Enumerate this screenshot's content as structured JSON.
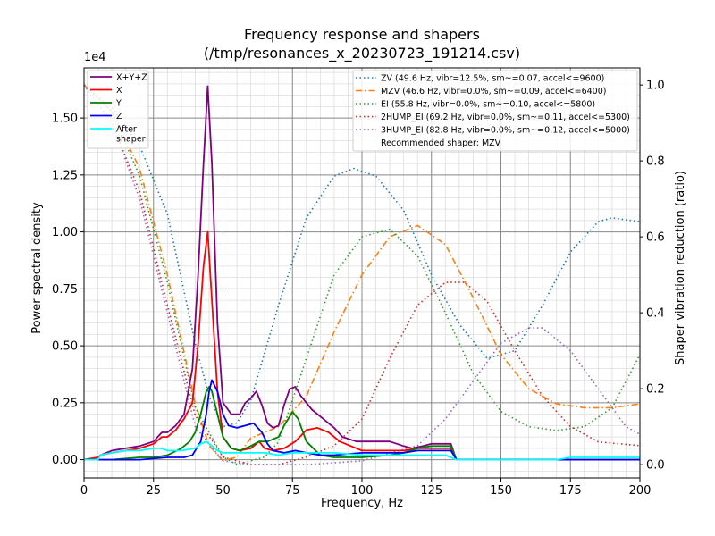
{
  "chart_data": {
    "type": "line",
    "title_line1": "Frequency response and shapers",
    "title_line2": "(/tmp/resonances_x_20230723_191214.csv)",
    "xlabel": "Frequency, Hz",
    "ylabel": "Power spectral density",
    "y2label": "Shaper vibration reduction (ratio)",
    "y_offset_text": "1e4",
    "xlim": [
      0,
      200
    ],
    "ylim": [
      -0.08,
      1.72
    ],
    "y2lim": [
      -0.035,
      1.045
    ],
    "x_ticks": [
      0,
      25,
      50,
      75,
      100,
      125,
      150,
      175,
      200
    ],
    "y_ticks": [
      0.0,
      0.25,
      0.5,
      0.75,
      1.0,
      1.25,
      1.5
    ],
    "y_tick_labels": [
      "0.00",
      "0.25",
      "0.50",
      "0.75",
      "1.00",
      "1.25",
      "1.50"
    ],
    "y2_ticks": [
      0.0,
      0.2,
      0.4,
      0.6,
      0.8,
      1.0
    ],
    "y2_tick_labels": [
      "0.0",
      "0.2",
      "0.4",
      "0.6",
      "0.8",
      "1.0"
    ],
    "grid": true,
    "legend_left_placement": "top-left",
    "legend_right_placement": "top-right",
    "psd_series": [
      {
        "name": "X+Y+Z",
        "color": "#800080",
        "style": "solid",
        "points": [
          [
            0,
            0
          ],
          [
            5,
            0.01
          ],
          [
            6,
            0.02
          ],
          [
            10,
            0.04
          ],
          [
            20,
            0.06
          ],
          [
            25,
            0.08
          ],
          [
            28,
            0.12
          ],
          [
            30,
            0.12
          ],
          [
            33,
            0.15
          ],
          [
            36,
            0.2
          ],
          [
            39,
            0.4
          ],
          [
            41,
            0.8
          ],
          [
            43,
            1.3
          ],
          [
            44.5,
            1.64
          ],
          [
            46,
            1.3
          ],
          [
            48,
            0.6
          ],
          [
            50,
            0.25
          ],
          [
            53,
            0.2
          ],
          [
            56,
            0.2
          ],
          [
            58,
            0.25
          ],
          [
            60,
            0.27
          ],
          [
            62,
            0.3
          ],
          [
            64,
            0.24
          ],
          [
            66,
            0.16
          ],
          [
            68,
            0.14
          ],
          [
            70,
            0.15
          ],
          [
            72,
            0.24
          ],
          [
            74,
            0.31
          ],
          [
            76,
            0.32
          ],
          [
            78,
            0.28
          ],
          [
            82,
            0.22
          ],
          [
            86,
            0.18
          ],
          [
            90,
            0.14
          ],
          [
            93,
            0.1
          ],
          [
            98,
            0.08
          ],
          [
            105,
            0.08
          ],
          [
            110,
            0.08
          ],
          [
            115,
            0.06
          ],
          [
            118,
            0.05
          ],
          [
            122,
            0.06
          ],
          [
            125,
            0.07
          ],
          [
            130,
            0.07
          ],
          [
            132,
            0.07
          ],
          [
            134,
            0.0
          ],
          [
            200,
            0.0
          ]
        ]
      },
      {
        "name": "X",
        "color": "#ff0000",
        "style": "solid",
        "points": [
          [
            0,
            0
          ],
          [
            5,
            0.01
          ],
          [
            6,
            0.02
          ],
          [
            10,
            0.03
          ],
          [
            20,
            0.05
          ],
          [
            25,
            0.07
          ],
          [
            28,
            0.1
          ],
          [
            30,
            0.1
          ],
          [
            33,
            0.13
          ],
          [
            36,
            0.18
          ],
          [
            39,
            0.25
          ],
          [
            41,
            0.5
          ],
          [
            43,
            0.85
          ],
          [
            44.5,
            1.0
          ],
          [
            46,
            0.7
          ],
          [
            48,
            0.3
          ],
          [
            50,
            0.1
          ],
          [
            53,
            0.05
          ],
          [
            56,
            0.04
          ],
          [
            60,
            0.05
          ],
          [
            63,
            0.08
          ],
          [
            65,
            0.05
          ],
          [
            68,
            0.04
          ],
          [
            72,
            0.05
          ],
          [
            76,
            0.08
          ],
          [
            80,
            0.13
          ],
          [
            84,
            0.14
          ],
          [
            88,
            0.12
          ],
          [
            92,
            0.08
          ],
          [
            96,
            0.06
          ],
          [
            100,
            0.04
          ],
          [
            110,
            0.04
          ],
          [
            115,
            0.04
          ],
          [
            120,
            0.05
          ],
          [
            125,
            0.05
          ],
          [
            130,
            0.05
          ],
          [
            132,
            0.05
          ],
          [
            134,
            0.0
          ],
          [
            200,
            0.0
          ]
        ]
      },
      {
        "name": "Y",
        "color": "#008000",
        "style": "solid",
        "points": [
          [
            0,
            0
          ],
          [
            5,
            0.0
          ],
          [
            10,
            0.0
          ],
          [
            20,
            0.01
          ],
          [
            25,
            0.01
          ],
          [
            30,
            0.02
          ],
          [
            35,
            0.05
          ],
          [
            38,
            0.08
          ],
          [
            40,
            0.12
          ],
          [
            42,
            0.2
          ],
          [
            44,
            0.3
          ],
          [
            45,
            0.32
          ],
          [
            46,
            0.3
          ],
          [
            48,
            0.2
          ],
          [
            50,
            0.1
          ],
          [
            53,
            0.05
          ],
          [
            56,
            0.04
          ],
          [
            60,
            0.06
          ],
          [
            63,
            0.08
          ],
          [
            66,
            0.08
          ],
          [
            70,
            0.1
          ],
          [
            72,
            0.15
          ],
          [
            75,
            0.21
          ],
          [
            77,
            0.18
          ],
          [
            80,
            0.08
          ],
          [
            85,
            0.02
          ],
          [
            90,
            0.01
          ],
          [
            100,
            0.01
          ],
          [
            110,
            0.02
          ],
          [
            115,
            0.03
          ],
          [
            120,
            0.05
          ],
          [
            125,
            0.06
          ],
          [
            130,
            0.06
          ],
          [
            132,
            0.06
          ],
          [
            134,
            0.0
          ],
          [
            200,
            0.0
          ]
        ]
      },
      {
        "name": "Z",
        "color": "#0000ff",
        "style": "solid",
        "points": [
          [
            0,
            0
          ],
          [
            10,
            0.0
          ],
          [
            20,
            0.0
          ],
          [
            30,
            0.01
          ],
          [
            36,
            0.01
          ],
          [
            39,
            0.02
          ],
          [
            42,
            0.08
          ],
          [
            44,
            0.2
          ],
          [
            45,
            0.3
          ],
          [
            46,
            0.35
          ],
          [
            48,
            0.3
          ],
          [
            50,
            0.2
          ],
          [
            52,
            0.15
          ],
          [
            55,
            0.14
          ],
          [
            58,
            0.15
          ],
          [
            61,
            0.16
          ],
          [
            64,
            0.12
          ],
          [
            66,
            0.07
          ],
          [
            68,
            0.04
          ],
          [
            72,
            0.03
          ],
          [
            76,
            0.04
          ],
          [
            80,
            0.03
          ],
          [
            85,
            0.02
          ],
          [
            90,
            0.02
          ],
          [
            100,
            0.03
          ],
          [
            110,
            0.03
          ],
          [
            115,
            0.03
          ],
          [
            120,
            0.04
          ],
          [
            125,
            0.04
          ],
          [
            130,
            0.04
          ],
          [
            132,
            0.04
          ],
          [
            134,
            0.0
          ],
          [
            200,
            0.0
          ]
        ]
      },
      {
        "name": "After\nshaper",
        "color": "#00ffff",
        "style": "solid",
        "points": [
          [
            0,
            0
          ],
          [
            5,
            0.0
          ],
          [
            6,
            0.02
          ],
          [
            10,
            0.03
          ],
          [
            15,
            0.04
          ],
          [
            20,
            0.04
          ],
          [
            25,
            0.05
          ],
          [
            28,
            0.05
          ],
          [
            30,
            0.04
          ],
          [
            35,
            0.04
          ],
          [
            40,
            0.05
          ],
          [
            42,
            0.07
          ],
          [
            44,
            0.08
          ],
          [
            46,
            0.06
          ],
          [
            48,
            0.04
          ],
          [
            50,
            0.03
          ],
          [
            55,
            0.03
          ],
          [
            60,
            0.03
          ],
          [
            65,
            0.03
          ],
          [
            70,
            0.02
          ],
          [
            75,
            0.03
          ],
          [
            80,
            0.03
          ],
          [
            90,
            0.03
          ],
          [
            100,
            0.02
          ],
          [
            110,
            0.02
          ],
          [
            120,
            0.02
          ],
          [
            130,
            0.02
          ],
          [
            134,
            0.0
          ],
          [
            170,
            0.0
          ],
          [
            175,
            0.01
          ],
          [
            200,
            0.01
          ]
        ]
      }
    ],
    "shaper_series": [
      {
        "name": "ZV (49.6 Hz, vibr=12.5%, sm~=0.07, accel<=9600)",
        "color": "#1f77b4",
        "style": "dotted",
        "points": [
          [
            0,
            1.0
          ],
          [
            10,
            0.94
          ],
          [
            20,
            0.84
          ],
          [
            30,
            0.66
          ],
          [
            40,
            0.32
          ],
          [
            45,
            0.18
          ],
          [
            50,
            0.1
          ],
          [
            55,
            0.11
          ],
          [
            60,
            0.17
          ],
          [
            70,
            0.42
          ],
          [
            80,
            0.65
          ],
          [
            90,
            0.76
          ],
          [
            97,
            0.78
          ],
          [
            105,
            0.76
          ],
          [
            115,
            0.67
          ],
          [
            125,
            0.5
          ],
          [
            135,
            0.37
          ],
          [
            145,
            0.28
          ],
          [
            155,
            0.3
          ],
          [
            165,
            0.42
          ],
          [
            175,
            0.56
          ],
          [
            185,
            0.64
          ],
          [
            190,
            0.65
          ],
          [
            200,
            0.64
          ]
        ]
      },
      {
        "name": "MZV (46.6 Hz, vibr=0.0%, sm~=0.09, accel<=6400)",
        "color": "#ff7f0e",
        "style": "dashdot",
        "points": [
          [
            0,
            1.0
          ],
          [
            10,
            0.93
          ],
          [
            20,
            0.78
          ],
          [
            30,
            0.5
          ],
          [
            40,
            0.16
          ],
          [
            45,
            0.05
          ],
          [
            50,
            0.01
          ],
          [
            55,
            0.02
          ],
          [
            60,
            0.07
          ],
          [
            70,
            0.1
          ],
          [
            80,
            0.18
          ],
          [
            90,
            0.35
          ],
          [
            100,
            0.5
          ],
          [
            110,
            0.6
          ],
          [
            120,
            0.63
          ],
          [
            130,
            0.58
          ],
          [
            140,
            0.44
          ],
          [
            150,
            0.29
          ],
          [
            160,
            0.2
          ],
          [
            170,
            0.16
          ],
          [
            180,
            0.15
          ],
          [
            190,
            0.15
          ],
          [
            200,
            0.16
          ]
        ]
      },
      {
        "name": "EI (55.8 Hz, vibr=0.0%, sm~=0.10, accel<=5800)",
        "color": "#2ca02c",
        "style": "dotted",
        "points": [
          [
            0,
            1.0
          ],
          [
            10,
            0.93
          ],
          [
            20,
            0.76
          ],
          [
            30,
            0.48
          ],
          [
            40,
            0.15
          ],
          [
            50,
            0.02
          ],
          [
            55,
            0.0
          ],
          [
            60,
            0.01
          ],
          [
            65,
            0.02
          ],
          [
            70,
            0.06
          ],
          [
            80,
            0.28
          ],
          [
            90,
            0.5
          ],
          [
            100,
            0.6
          ],
          [
            110,
            0.62
          ],
          [
            120,
            0.55
          ],
          [
            130,
            0.4
          ],
          [
            140,
            0.24
          ],
          [
            150,
            0.14
          ],
          [
            160,
            0.1
          ],
          [
            170,
            0.09
          ],
          [
            180,
            0.1
          ],
          [
            190,
            0.15
          ],
          [
            200,
            0.29
          ]
        ]
      },
      {
        "name": "2HUMP_EI (69.2 Hz, vibr=0.0%, sm~=0.11, accel<=5300)",
        "color": "#d62728",
        "style": "dotted",
        "points": [
          [
            0,
            1.0
          ],
          [
            10,
            0.9
          ],
          [
            20,
            0.72
          ],
          [
            30,
            0.42
          ],
          [
            40,
            0.13
          ],
          [
            50,
            0.02
          ],
          [
            60,
            0.0
          ],
          [
            70,
            0.0
          ],
          [
            80,
            0.02
          ],
          [
            90,
            0.05
          ],
          [
            100,
            0.12
          ],
          [
            110,
            0.28
          ],
          [
            120,
            0.42
          ],
          [
            130,
            0.48
          ],
          [
            137,
            0.48
          ],
          [
            145,
            0.43
          ],
          [
            155,
            0.3
          ],
          [
            165,
            0.18
          ],
          [
            175,
            0.1
          ],
          [
            185,
            0.06
          ],
          [
            200,
            0.05
          ]
        ]
      },
      {
        "name": "3HUMP_EI (82.8 Hz, vibr=0.0%, sm~=0.12, accel<=5000)",
        "color": "#9467bd",
        "style": "dotted",
        "points": [
          [
            0,
            1.0
          ],
          [
            10,
            0.9
          ],
          [
            20,
            0.7
          ],
          [
            30,
            0.4
          ],
          [
            40,
            0.1
          ],
          [
            50,
            0.01
          ],
          [
            60,
            0.0
          ],
          [
            80,
            0.0
          ],
          [
            100,
            0.01
          ],
          [
            120,
            0.05
          ],
          [
            130,
            0.12
          ],
          [
            140,
            0.22
          ],
          [
            150,
            0.32
          ],
          [
            160,
            0.36
          ],
          [
            165,
            0.36
          ],
          [
            175,
            0.3
          ],
          [
            185,
            0.2
          ],
          [
            195,
            0.1
          ],
          [
            200,
            0.08
          ]
        ]
      }
    ],
    "recommendation_text": "Recommended shaper: MZV"
  }
}
